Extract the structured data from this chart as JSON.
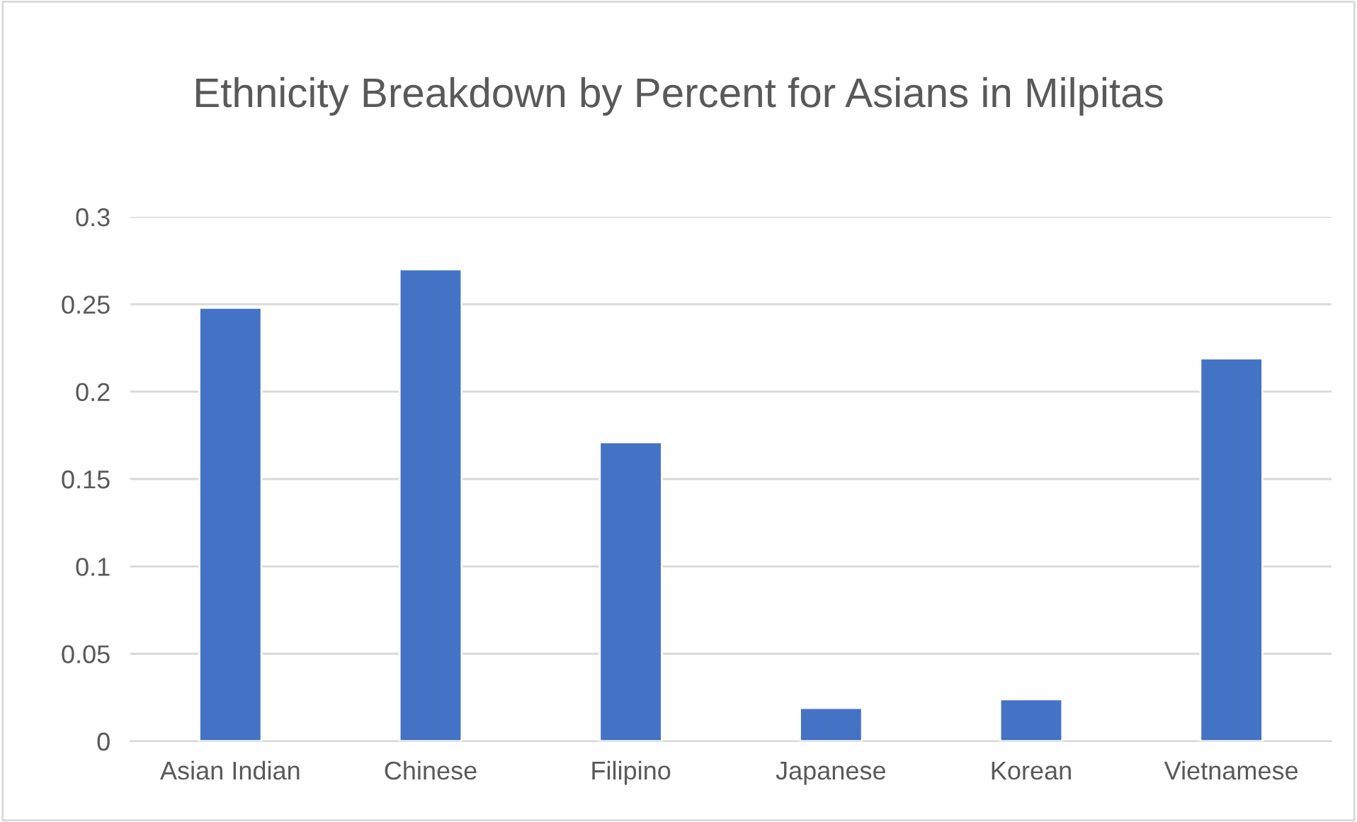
{
  "chart_data": {
    "type": "bar",
    "title": "Ethnicity Breakdown by Percent for Asians in Milpitas",
    "categories": [
      "Asian Indian",
      "Chinese",
      "Filipino",
      "Japanese",
      "Korean",
      "Vietnamese"
    ],
    "values": [
      0.248,
      0.27,
      0.171,
      0.019,
      0.024,
      0.219
    ],
    "color": "#4472c4",
    "ylim": [
      0,
      0.3
    ],
    "yticks": [
      0,
      {
        "value": 0.05,
        "label": "0.05"
      },
      {
        "value": 0.1,
        "label": "0.1"
      },
      {
        "value": 0.15,
        "label": "0.15"
      },
      {
        "value": 0.2,
        "label": "0.2"
      },
      {
        "value": 0.25,
        "label": "0.25"
      },
      {
        "value": 0.3,
        "label": "0.3"
      }
    ],
    "grid": "y"
  }
}
